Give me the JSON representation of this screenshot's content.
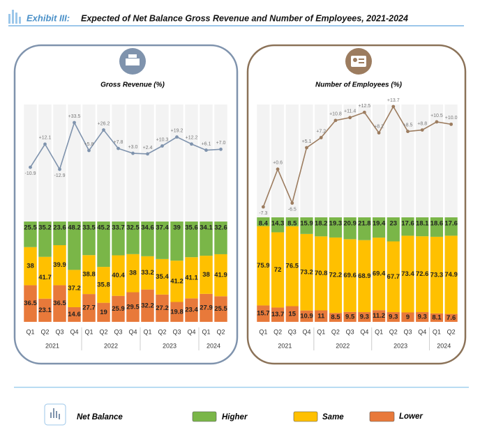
{
  "header": {
    "exhibit": "Exhibit  III:",
    "title": "Expected of Net Balance Gross Revenue and Number of Employees, 2021-2024"
  },
  "chart_data": [
    {
      "type": "bar",
      "stacked": true,
      "title": "Gross Revenue (%)",
      "categories": [
        "Q1",
        "Q2",
        "Q3",
        "Q4",
        "Q1",
        "Q2",
        "Q3",
        "Q4",
        "Q1",
        "Q2",
        "Q3",
        "Q4",
        "Q1",
        "Q2"
      ],
      "years": [
        "2021",
        "2022",
        "2023",
        "2024"
      ],
      "series": [
        {
          "name": "Lower",
          "color": "#e8793a",
          "values": [
            36.5,
            23.1,
            36.5,
            14.6,
            27.7,
            19.0,
            25.9,
            29.5,
            32.2,
            27.2,
            19.8,
            23.4,
            27.9,
            25.5
          ]
        },
        {
          "name": "Same",
          "color": "#ffc000",
          "values": [
            38.0,
            41.7,
            39.9,
            37.2,
            38.8,
            35.8,
            40.4,
            38.0,
            33.2,
            35.4,
            41.2,
            41.1,
            38.0,
            41.9
          ]
        },
        {
          "name": "Higher",
          "color": "#7ab648",
          "values": [
            25.5,
            35.2,
            23.6,
            48.2,
            33.5,
            45.2,
            33.7,
            32.5,
            34.6,
            37.4,
            39.0,
            35.6,
            34.1,
            32.6
          ]
        }
      ],
      "line": {
        "name": "Net Balance",
        "color": "#7f93ad",
        "values": [
          -10.9,
          12.1,
          -12.9,
          33.5,
          5.8,
          26.2,
          7.8,
          3.0,
          2.4,
          10.3,
          19.2,
          12.2,
          6.1,
          7.0
        ],
        "value_labels": [
          "-10.9",
          "+12.1",
          "-12.9",
          "+33.5",
          "+5.8",
          "+26.2",
          "+7.8",
          "+3.0",
          "+2.4",
          "+10.3",
          "+19.2",
          "+12.2",
          "+6.1",
          "+7.0"
        ]
      }
    },
    {
      "type": "bar",
      "stacked": true,
      "title": "Number of Employees (%)",
      "categories": [
        "Q1",
        "Q2",
        "Q3",
        "Q4",
        "Q1",
        "Q2",
        "Q3",
        "Q4",
        "Q1",
        "Q2",
        "Q3",
        "Q4",
        "Q1",
        "Q2"
      ],
      "years": [
        "2021",
        "2022",
        "2023",
        "2024"
      ],
      "series": [
        {
          "color": "#e8793a",
          "values": [
            15.7,
            13.7,
            15.0,
            10.9,
            11.0,
            8.5,
            9.5,
            9.3,
            11.2,
            9.3,
            9.0,
            9.3,
            8.1,
            7.6
          ]
        },
        {
          "color": "#ffc000",
          "values": [
            75.9,
            72.0,
            76.5,
            73.2,
            70.8,
            72.2,
            69.6,
            68.9,
            69.4,
            67.7,
            73.4,
            72.6,
            73.3,
            74.9
          ]
        },
        {
          "color": "#7ab648",
          "values": [
            8.4,
            14.3,
            8.5,
            15.9,
            18.2,
            19.3,
            20.9,
            21.8,
            19.4,
            23.0,
            17.6,
            18.1,
            18.6,
            17.6
          ]
        }
      ],
      "line": {
        "color": "#9c7c5f",
        "values": [
          -7.3,
          0.6,
          -6.5,
          5.1,
          7.2,
          10.8,
          11.4,
          12.5,
          8.2,
          13.7,
          8.5,
          8.8,
          10.5,
          10.0
        ],
        "value_labels": [
          "-7.3",
          "+0.6",
          "-6.5",
          "+5.1",
          "+7.2",
          "+10.8",
          "+11.4",
          "+12.5",
          "+8.2",
          "+13.7",
          "+8.5",
          "+8.8",
          "+10.5",
          "+10.0"
        ]
      }
    }
  ]
}
